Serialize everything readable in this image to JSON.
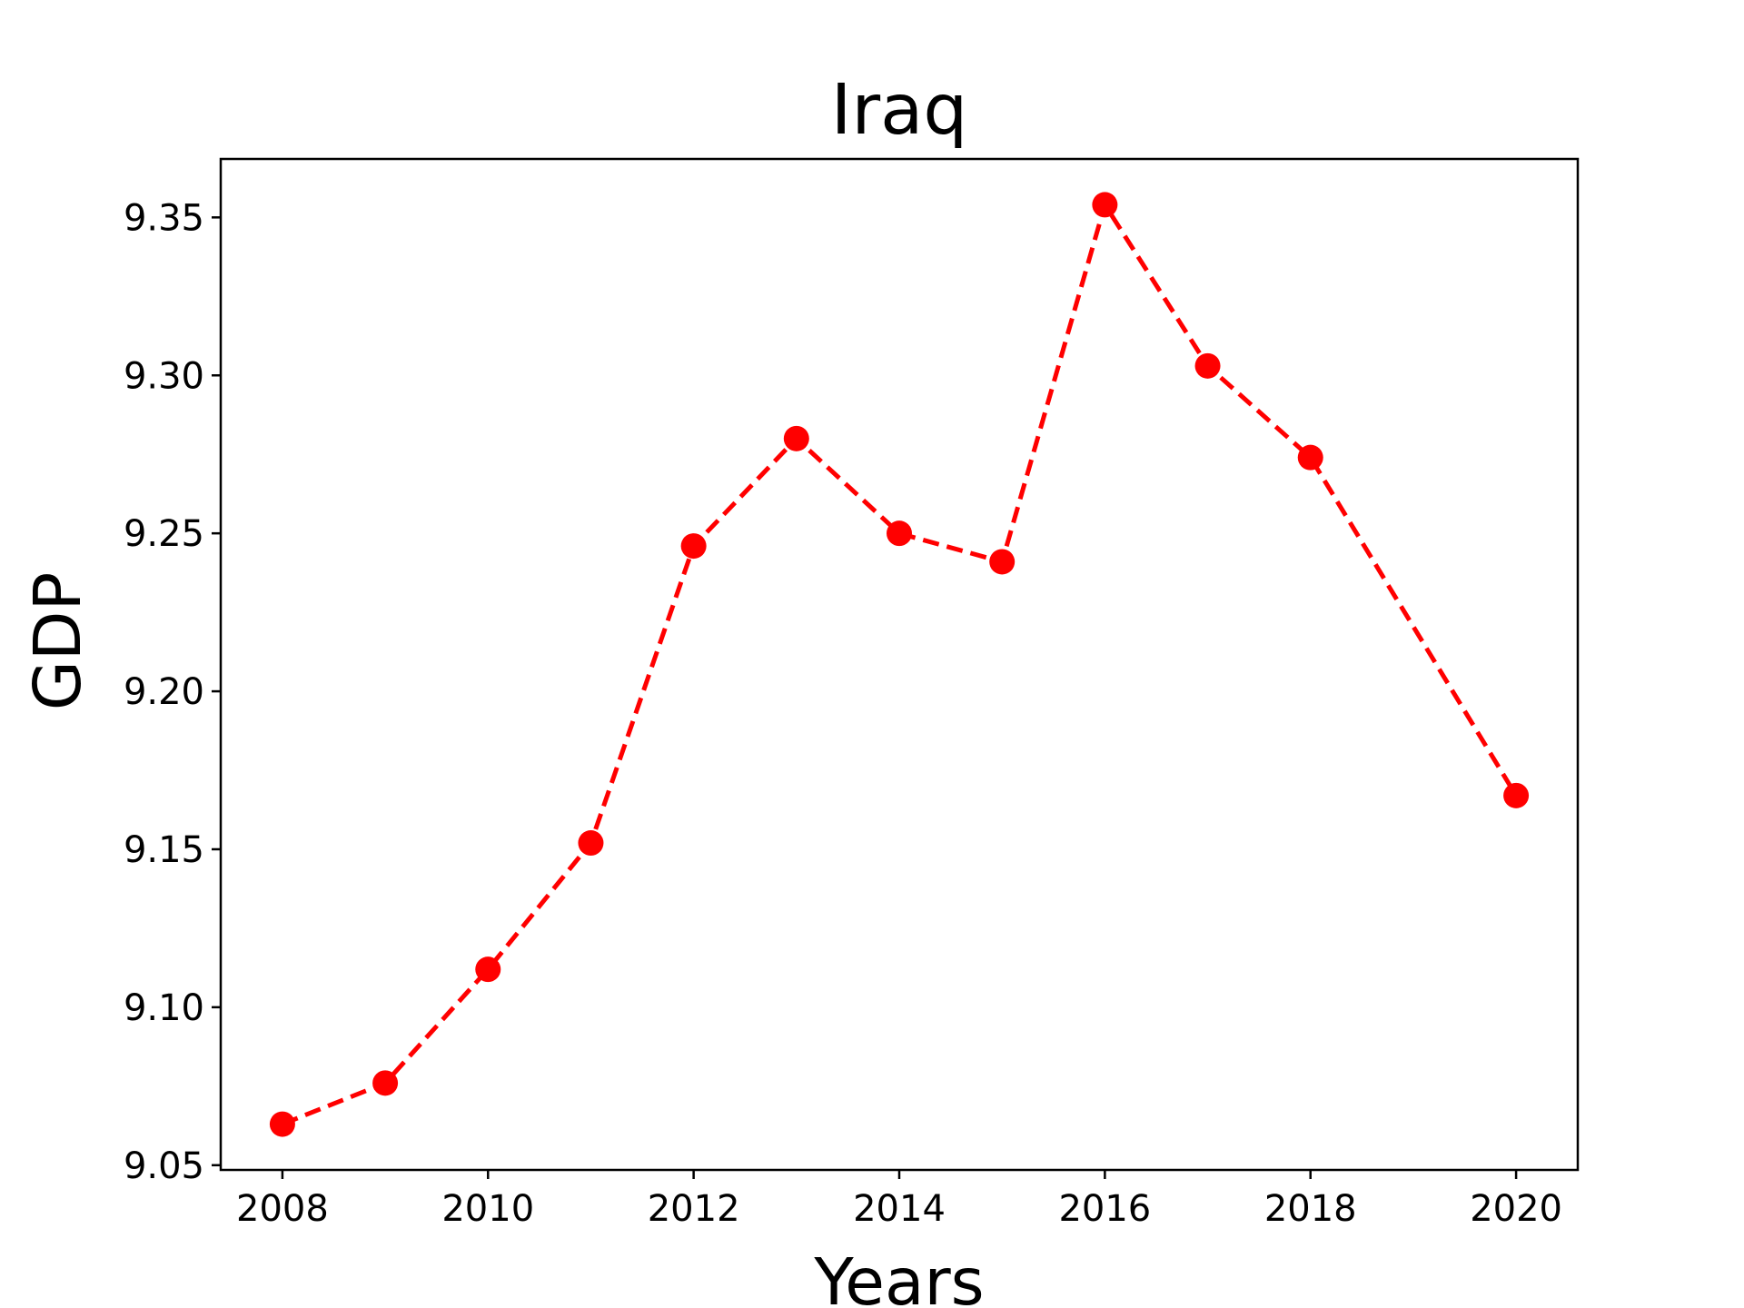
{
  "chart_data": {
    "type": "line",
    "title": "Iraq",
    "xlabel": "Years",
    "ylabel": "GDP",
    "x": [
      2008,
      2009,
      2010,
      2011,
      2012,
      2013,
      2014,
      2015,
      2016,
      2017,
      2018,
      2020
    ],
    "series": [
      {
        "values": [
          9.063,
          9.076,
          9.112,
          9.152,
          9.246,
          9.28,
          9.25,
          9.241,
          9.354,
          9.303,
          9.274,
          9.167
        ],
        "color": "#ff0000",
        "line_style": "dashed",
        "marker": "circle"
      }
    ],
    "xticks": [
      "2008",
      "2010",
      "2012",
      "2014",
      "2016",
      "2018",
      "2020"
    ],
    "yticks": [
      "9.05",
      "9.10",
      "9.15",
      "9.20",
      "9.25",
      "9.30",
      "9.35"
    ],
    "xlim": [
      2007.4,
      2020.6
    ],
    "ylim": [
      9.0485,
      9.3685
    ],
    "grid": false,
    "legend": "none"
  }
}
